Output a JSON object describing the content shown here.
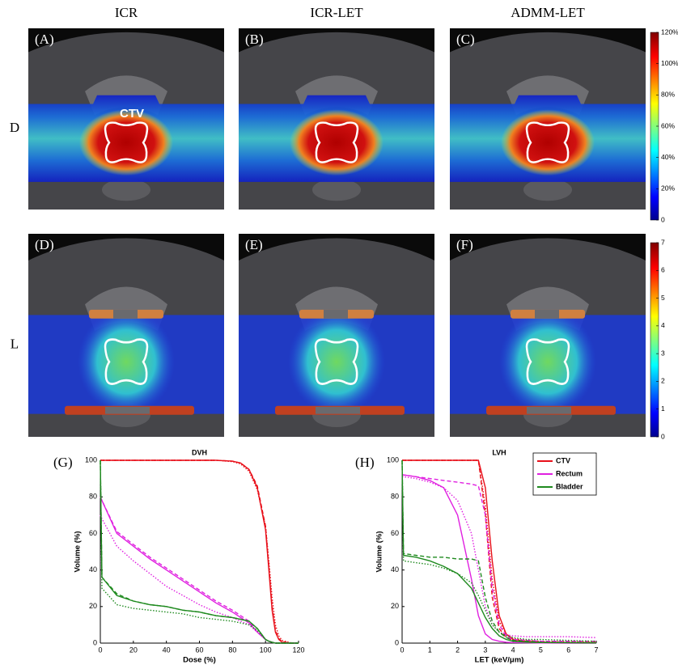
{
  "figure": {
    "columns": [
      "ICR",
      "ICR-LET",
      "ADMM-LET"
    ],
    "rows": [
      "D",
      "L"
    ],
    "panels": [
      "(A)",
      "(B)",
      "(C)",
      "(D)",
      "(E)",
      "(F)"
    ],
    "annotation": "CTV",
    "colorbars": [
      {
        "lim": [
          0,
          120
        ],
        "ticks": [
          0,
          {
            "value": 20,
            "label": "20%"
          },
          {
            "value": 40,
            "label": "40%"
          },
          {
            "value": 60,
            "label": "60%"
          },
          {
            "value": 80,
            "label": "80%"
          },
          {
            "value": 100,
            "label": "100%"
          },
          {
            "value": 120,
            "label": "120%"
          }
        ]
      },
      {
        "lim": [
          0,
          7
        ],
        "ticks": [
          0,
          1,
          2,
          3,
          4,
          5,
          6,
          7
        ]
      }
    ]
  },
  "chart_data": [
    {
      "type": "line",
      "title": "DVH",
      "panel": "(G)",
      "x_label": "Dose (%)",
      "y_label": "Volume (%)",
      "xlim": [
        0,
        120
      ],
      "ylim": [
        0,
        100
      ],
      "xticks": [
        0,
        20,
        40,
        60,
        80,
        100,
        120
      ],
      "yticks": [
        0,
        20,
        40,
        60,
        80,
        100
      ],
      "x": [
        0,
        1,
        10,
        20,
        30,
        40,
        50,
        60,
        70,
        80,
        85,
        90,
        95,
        100,
        102,
        104,
        106,
        108,
        110,
        115,
        120
      ],
      "series": [
        {
          "name": "CTV",
          "color": "#e8101a",
          "values": [
            100,
            100,
            100,
            100,
            100,
            100,
            100,
            100,
            100,
            99.5,
            98.5,
            95,
            85,
            62,
            40,
            18,
            6,
            2,
            0.5,
            0,
            0
          ],
          "dashed": [
            100,
            100,
            100,
            100,
            100,
            100,
            100,
            100,
            100,
            99.5,
            98.5,
            95,
            86,
            64,
            42,
            20,
            7,
            2.5,
            0.8,
            0,
            0
          ],
          "dotted": [
            100,
            100,
            100,
            100,
            100,
            100,
            100,
            100,
            100,
            99.3,
            98,
            94,
            84,
            64,
            45,
            25,
            10,
            4,
            1.5,
            0.2,
            0
          ]
        },
        {
          "name": "Rectum",
          "color": "#e020e0",
          "values": [
            80,
            78,
            60,
            53,
            46,
            40,
            34,
            28,
            22,
            17,
            14,
            11,
            6,
            2,
            1,
            0.5,
            0,
            0,
            0,
            0,
            0
          ],
          "dashed": [
            80,
            78,
            61,
            54,
            47,
            41,
            35,
            29,
            23,
            18,
            15,
            12,
            6,
            2,
            1,
            0.5,
            0,
            0,
            0,
            0,
            0
          ],
          "dotted": [
            70,
            68,
            53,
            45,
            38,
            31,
            26,
            21,
            17,
            14,
            12,
            10,
            6,
            2,
            1,
            0.5,
            0,
            0,
            0,
            0,
            0
          ]
        },
        {
          "name": "Bladder",
          "color": "#1f8a1f",
          "values": [
            100,
            36,
            26,
            23,
            21,
            20,
            18,
            17,
            15,
            14,
            13,
            12,
            8,
            2,
            1,
            0.5,
            0,
            0,
            0,
            0,
            0
          ],
          "dashed": [
            100,
            36,
            27,
            23,
            21,
            20,
            18,
            17,
            15,
            14,
            13,
            12,
            8,
            2,
            1,
            0.5,
            0,
            0,
            0,
            0,
            0
          ],
          "dotted": [
            100,
            30,
            21,
            19,
            18,
            17,
            16,
            14,
            13,
            12,
            11,
            10,
            7,
            2,
            1,
            0.5,
            0,
            0,
            0,
            0,
            0
          ]
        }
      ]
    },
    {
      "type": "line",
      "title": "LVH",
      "panel": "(H)",
      "x_label": "LET (keV/μm)",
      "y_label": "Volume (%)",
      "xlim": [
        0,
        7
      ],
      "ylim": [
        0,
        100
      ],
      "xticks": [
        0,
        1,
        2,
        3,
        4,
        5,
        6,
        7
      ],
      "yticks": [
        0,
        20,
        40,
        60,
        80,
        100
      ],
      "legend": "upper right",
      "x": [
        0,
        0.05,
        0.5,
        1,
        1.5,
        2,
        2.5,
        2.75,
        3,
        3.25,
        3.5,
        3.75,
        4,
        4.5,
        5,
        6,
        7
      ],
      "series": [
        {
          "name": "CTV",
          "color": "#e8101a",
          "values": [
            100,
            100,
            100,
            100,
            100,
            100,
            100,
            100,
            85,
            45,
            15,
            5,
            2,
            1,
            0.5,
            0.3,
            0.2
          ],
          "dashed": [
            100,
            100,
            100,
            100,
            100,
            100,
            100,
            100,
            70,
            25,
            8,
            3,
            1.5,
            1,
            0.5,
            0.3,
            0.2
          ],
          "dotted": [
            100,
            100,
            100,
            100,
            100,
            100,
            100,
            100,
            75,
            35,
            12,
            5,
            2.5,
            1.5,
            1,
            0.8,
            0.5
          ]
        },
        {
          "name": "Rectum",
          "color": "#e020e0",
          "values": [
            92,
            92,
            91,
            89,
            85,
            70,
            35,
            15,
            5,
            2,
            1,
            0.5,
            0.3,
            0.2,
            0.1,
            0,
            0
          ],
          "dashed": [
            92,
            92,
            91,
            90,
            89,
            88,
            87,
            86,
            70,
            30,
            10,
            4,
            2,
            1.5,
            1,
            1,
            1
          ],
          "dotted": [
            91,
            91,
            90,
            88,
            85,
            78,
            60,
            40,
            20,
            10,
            6,
            4.5,
            4,
            3.5,
            3.5,
            3.5,
            3
          ]
        },
        {
          "name": "Bladder",
          "color": "#1f8a1f",
          "values": [
            100,
            48,
            47,
            45,
            42,
            38,
            30,
            22,
            14,
            8,
            4,
            2,
            1,
            0.5,
            0.3,
            0.2,
            0.1
          ],
          "dashed": [
            100,
            49,
            48,
            47,
            47,
            46,
            46,
            45,
            25,
            12,
            6,
            3,
            1.5,
            1,
            0.5,
            0.3,
            0.2
          ],
          "dotted": [
            100,
            45,
            44,
            43,
            41,
            38,
            33,
            26,
            18,
            10,
            6,
            4,
            3,
            2,
            2,
            1.5,
            1
          ]
        }
      ]
    }
  ]
}
